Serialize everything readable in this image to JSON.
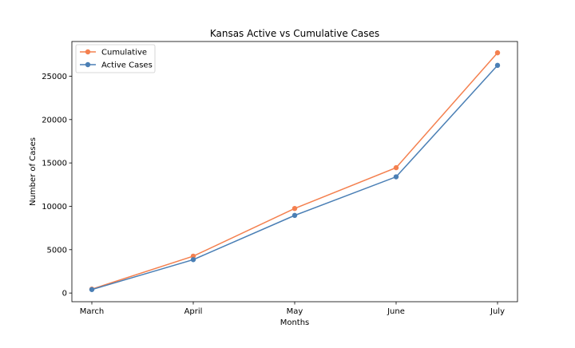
{
  "chart_data": {
    "type": "line",
    "title": "Kansas Active vs Cumulative Cases",
    "xlabel": "Months",
    "ylabel": "Number of Cases",
    "categories": [
      "March",
      "April",
      "May",
      "June",
      "July"
    ],
    "ylim": [
      -1000,
      29000
    ],
    "yticks": [
      0,
      5000,
      10000,
      15000,
      20000,
      25000
    ],
    "grid": false,
    "legend_position": "top-left",
    "series": [
      {
        "name": "Cumulative",
        "color": "#f4804f",
        "marker": "circle",
        "values": [
          450,
          4250,
          9750,
          14450,
          27700
        ]
      },
      {
        "name": "Active Cases",
        "color": "#4a7fb5",
        "marker": "circle",
        "values": [
          400,
          3850,
          8950,
          13400,
          26250
        ]
      }
    ]
  }
}
